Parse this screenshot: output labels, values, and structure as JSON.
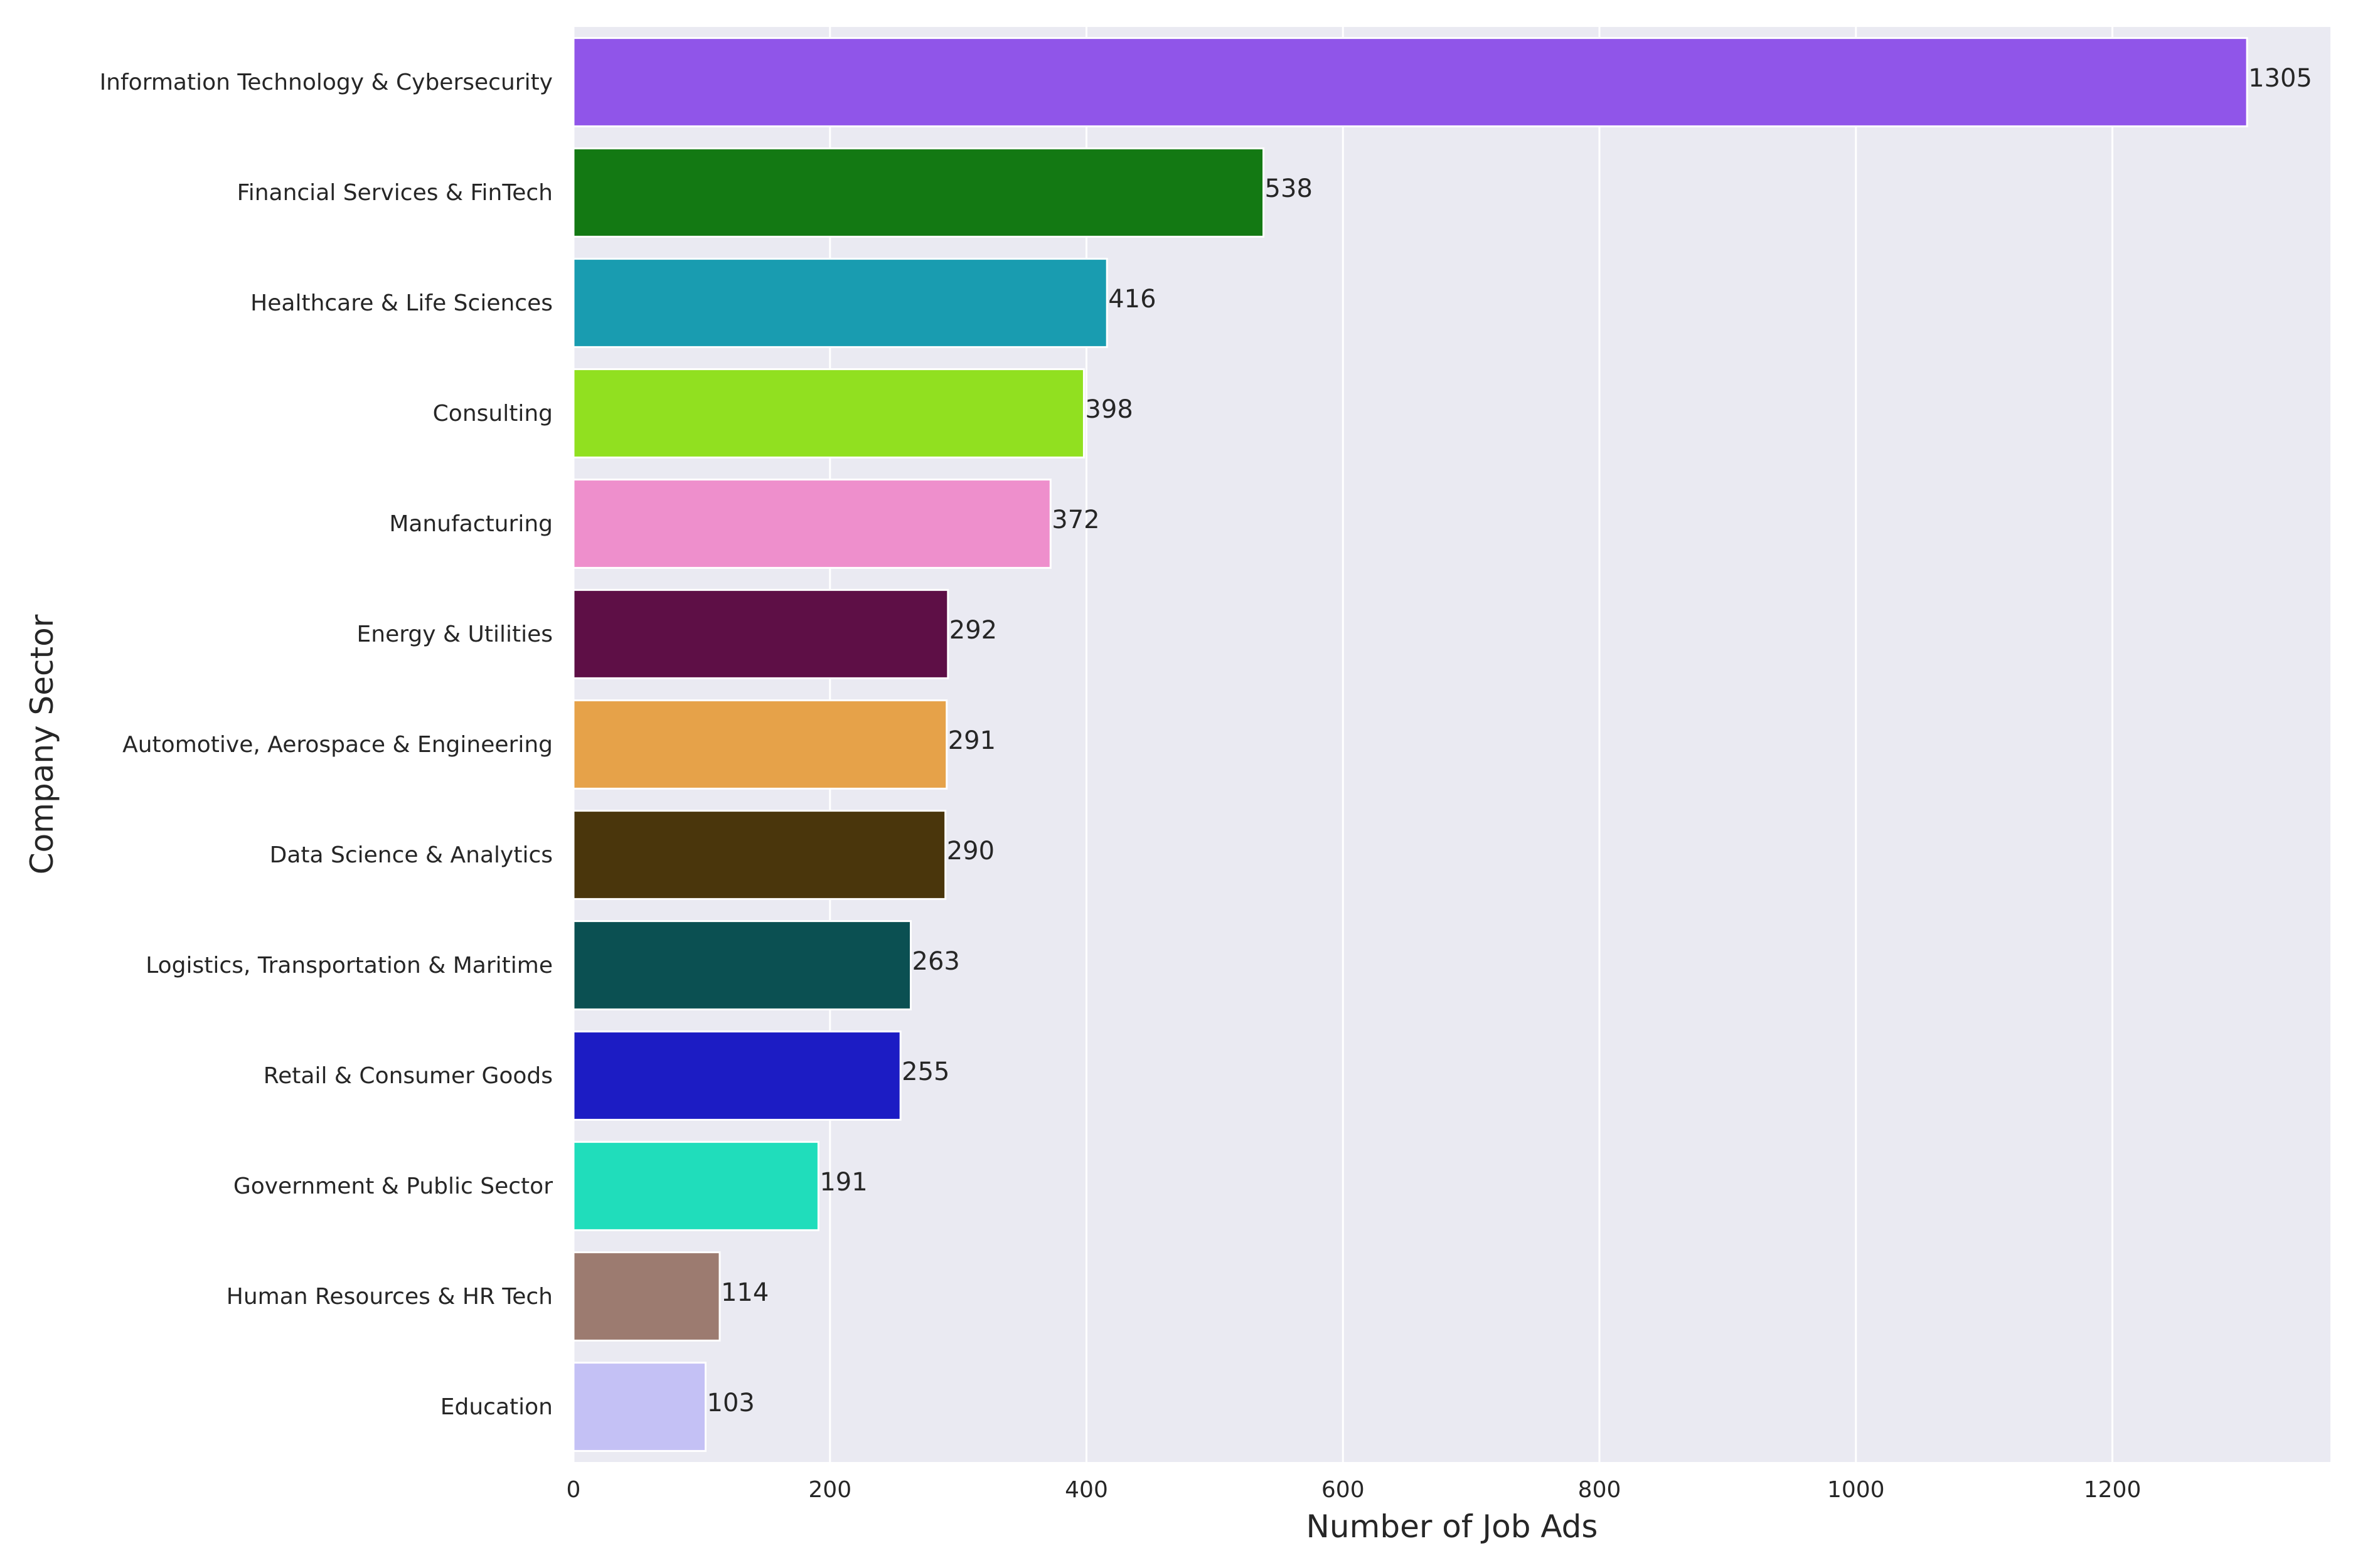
{
  "chart_data": {
    "type": "bar",
    "orientation": "horizontal",
    "xlabel": "Number of Job Ads",
    "ylabel": "Company Sector",
    "xlim": [
      0,
      1370
    ],
    "xticks": [
      0,
      200,
      400,
      600,
      800,
      1000,
      1200
    ],
    "grid": true,
    "background": "#eaeaf2",
    "categories": [
      "Information Technology & Cybersecurity",
      "Financial Services & FinTech",
      "Healthcare & Life Sciences",
      "Consulting",
      "Manufacturing",
      "Energy & Utilities",
      "Automotive, Aerospace & Engineering",
      "Data Science & Analytics",
      "Logistics, Transportation & Maritime",
      "Retail & Consumer Goods",
      "Government & Public Sector",
      "Human Resources & HR Tech",
      "Education"
    ],
    "values": [
      1305,
      538,
      416,
      398,
      372,
      292,
      291,
      290,
      263,
      255,
      191,
      114,
      103
    ],
    "colors": [
      "#9055e9",
      "#137913",
      "#199cb0",
      "#91e020",
      "#ee8fcc",
      "#5e0f46",
      "#e6a249",
      "#4a360c",
      "#0b5052",
      "#1c1cc4",
      "#20ddbb",
      "#9c7b70",
      "#c4c1f5"
    ]
  }
}
